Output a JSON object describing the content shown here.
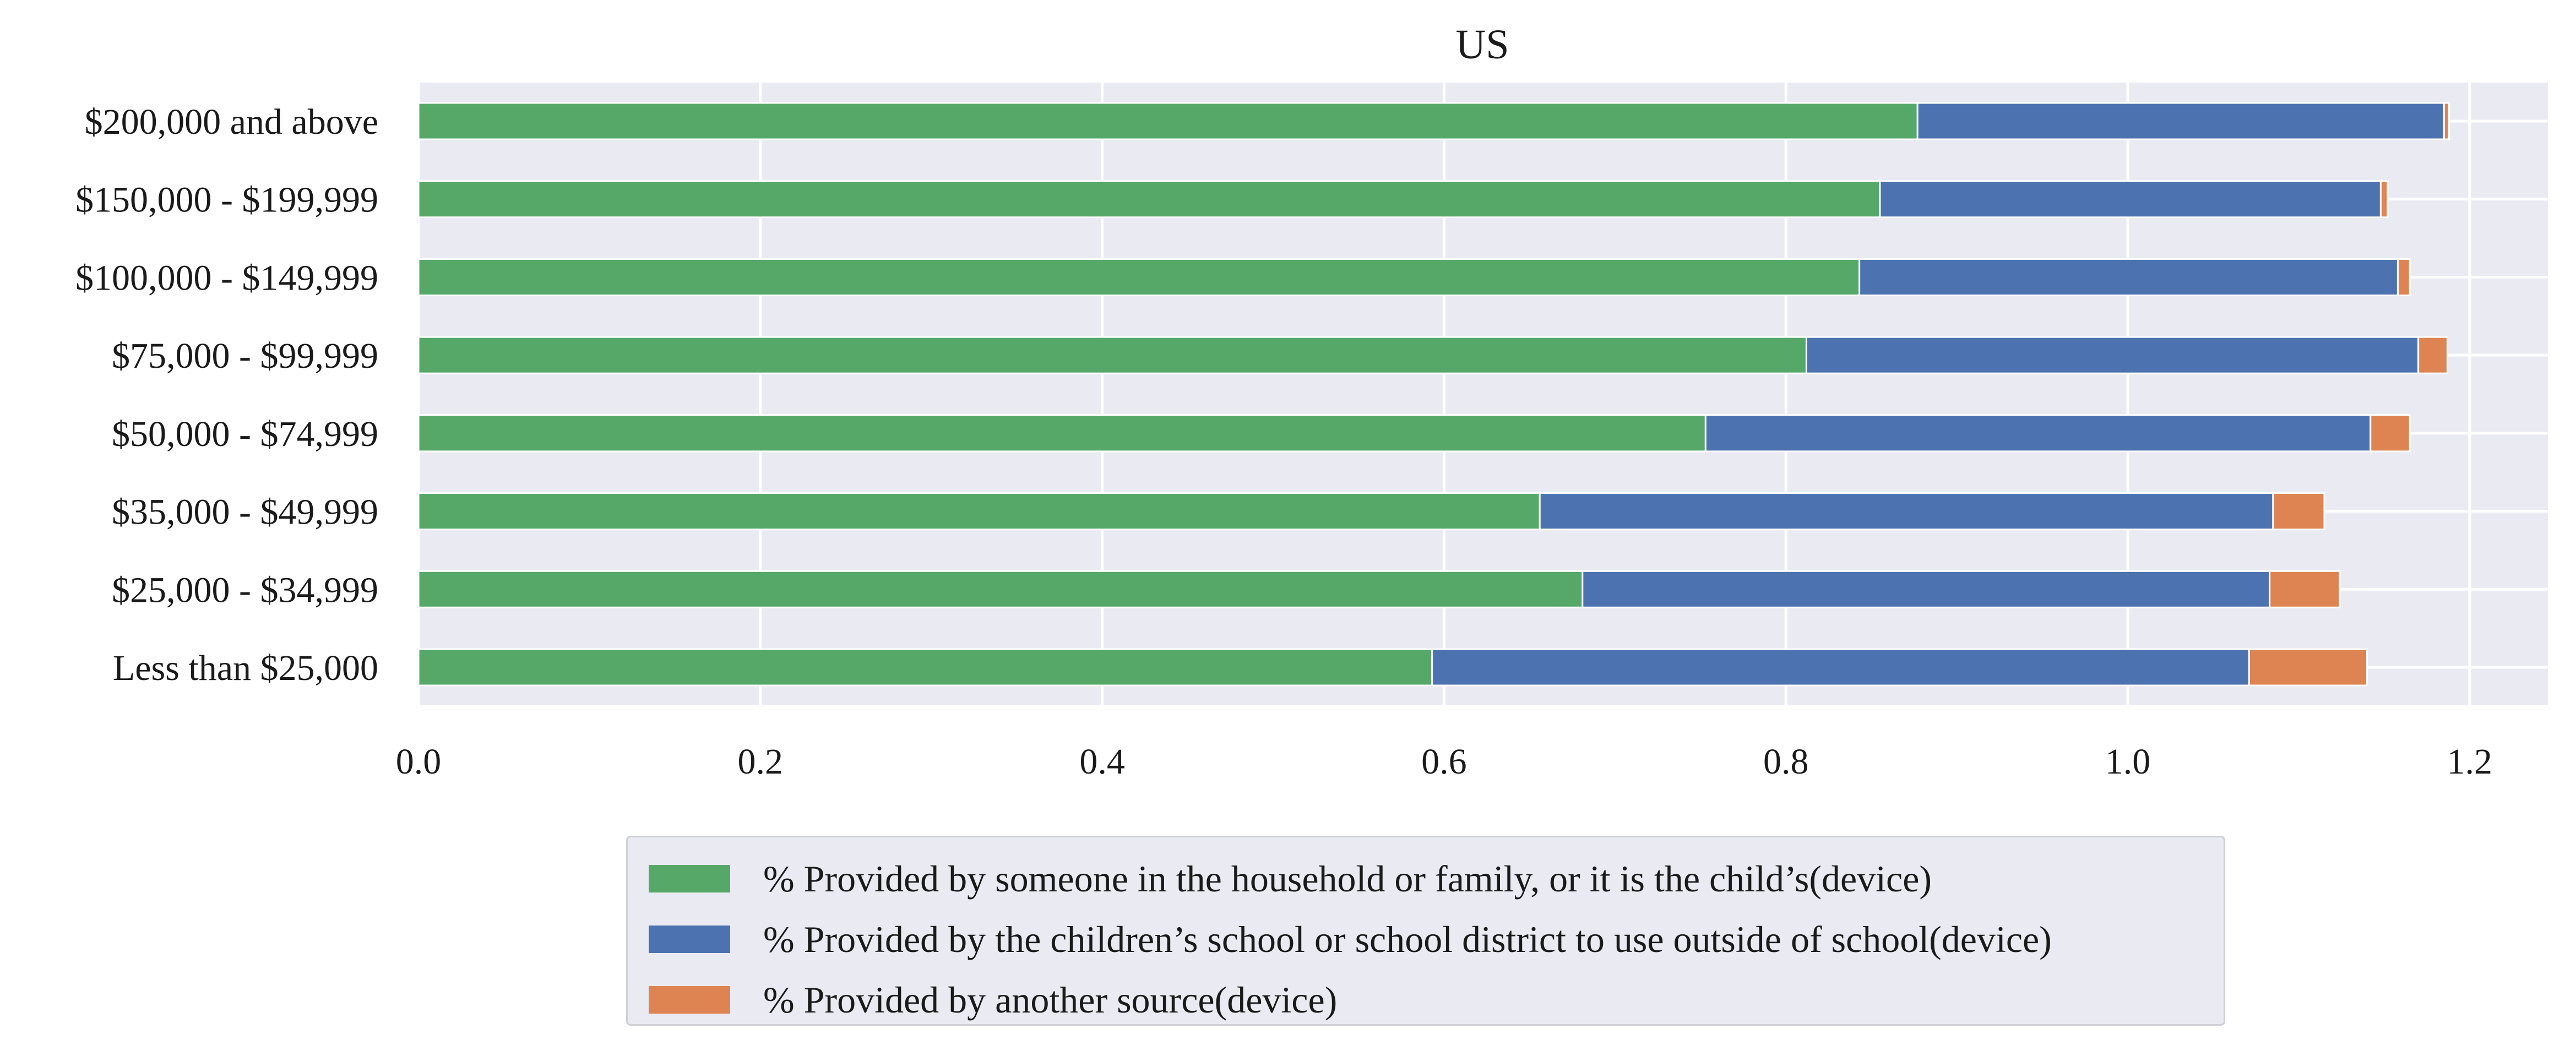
{
  "chart_data": {
    "type": "bar",
    "orientation": "horizontal",
    "stacked": true,
    "title": "US",
    "xlabel": "",
    "ylabel": "",
    "xlim": [
      0,
      1.25
    ],
    "xticks": [
      "0.0",
      "0.2",
      "0.4",
      "0.6",
      "0.8",
      "1.0",
      "1.2"
    ],
    "xtick_values": [
      0.0,
      0.2,
      0.4,
      0.6,
      0.8,
      1.0,
      1.2
    ],
    "grid": true,
    "legend_position": "bottom-center",
    "categories": [
      "$200,000 and above",
      "$150,000 - $199,999",
      "$100,000 - $149,999",
      "$75,000 - $99,999",
      "$50,000 - $74,999",
      "$35,000 - $49,999",
      "$25,000 - $34,999",
      "Less than $25,000"
    ],
    "series": [
      {
        "name": "% Provided by someone in the household or family, or it is the child’s(device)",
        "color": "#55a868",
        "values": [
          0.877,
          0.855,
          0.843,
          0.812,
          0.753,
          0.656,
          0.681,
          0.593
        ]
      },
      {
        "name": "% Provided by the children’s school or school district to use outside of school(device)",
        "color": "#4c72b0",
        "values": [
          0.308,
          0.293,
          0.315,
          0.358,
          0.389,
          0.429,
          0.402,
          0.478
        ]
      },
      {
        "name": "% Provided by another source(device)",
        "color": "#dd8452",
        "values": [
          0.003,
          0.004,
          0.007,
          0.017,
          0.023,
          0.03,
          0.041,
          0.069
        ]
      }
    ]
  }
}
